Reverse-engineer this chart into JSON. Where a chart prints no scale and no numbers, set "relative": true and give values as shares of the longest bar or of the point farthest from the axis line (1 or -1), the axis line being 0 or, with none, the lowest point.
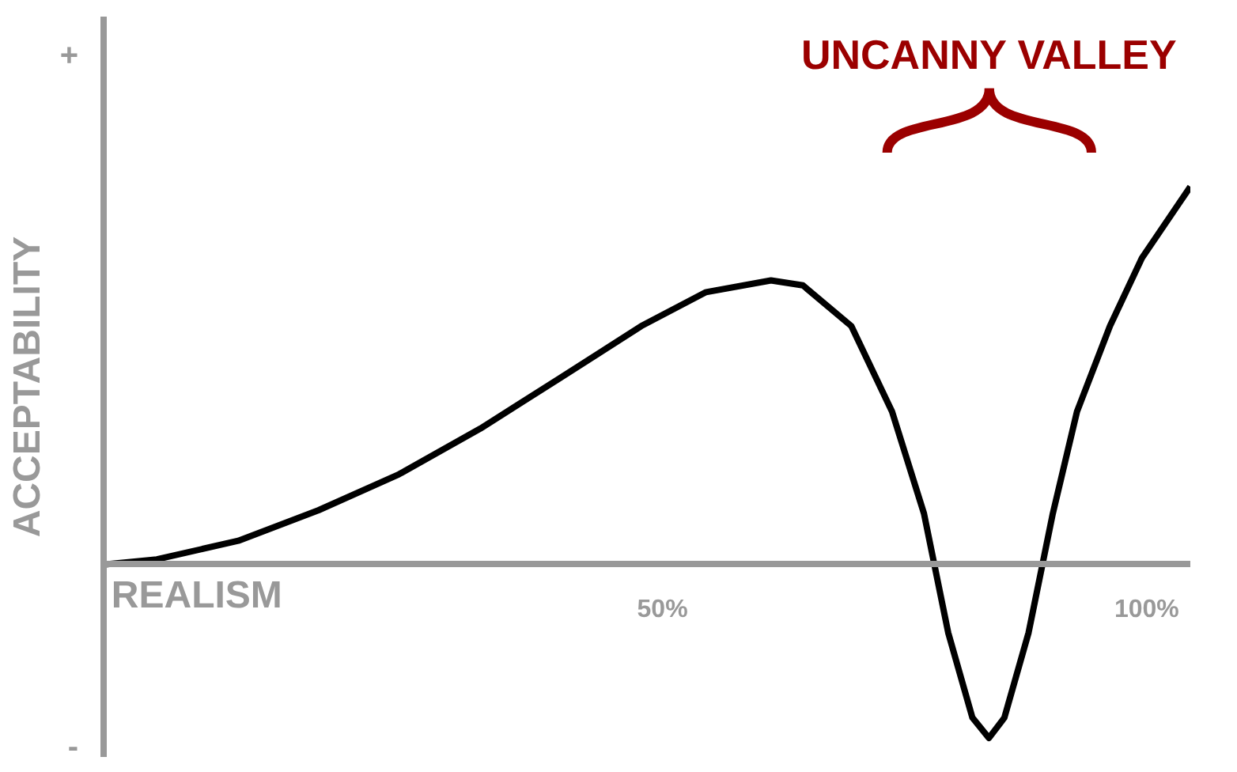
{
  "chart_data": {
    "type": "line",
    "relative": true,
    "xlabel": "REALISM",
    "ylabel": "ACCEPTABILITY",
    "x": [
      -7.7,
      -2.2,
      6.2,
      14.5,
      22.8,
      31.2,
      39.5,
      47.8,
      54.5,
      61.2,
      64.5,
      69.5,
      73.7,
      77.0,
      79.5,
      82.0,
      83.7,
      85.3,
      87.8,
      90.3,
      92.8,
      96.2,
      99.5,
      104.5
    ],
    "series": [
      {
        "color": "#000000",
        "values": [
          0,
          0.014,
          0.063,
          0.144,
          0.239,
          0.36,
          0.495,
          0.631,
          0.721,
          0.752,
          0.739,
          0.631,
          0.405,
          0.135,
          -0.18,
          -0.405,
          -0.459,
          -0.405,
          -0.18,
          0.135,
          0.405,
          0.631,
          0.811,
          1.0
        ]
      }
    ],
    "xlim": [
      -7.7,
      104.5
    ],
    "xticks": [
      {
        "value": 50,
        "label": "50%"
      },
      {
        "value": 100,
        "label": "100%"
      }
    ],
    "annotations": [
      "+",
      "-",
      "UNCANNY VALLEY"
    ],
    "grid": false,
    "marker": "none",
    "line_style": "solid"
  }
}
